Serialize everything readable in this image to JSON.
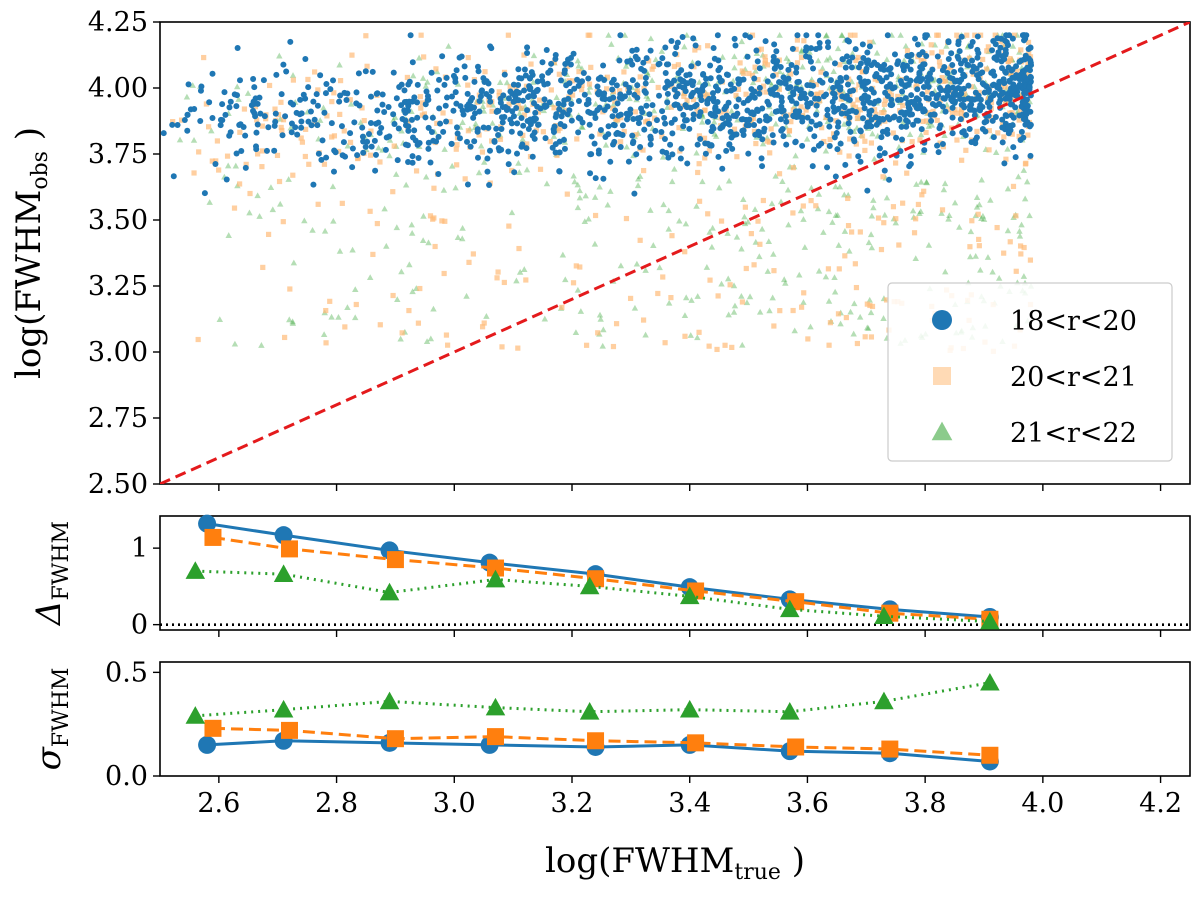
{
  "chart_data": [
    {
      "type": "scatter",
      "panel": "main",
      "ylabel_main": "log(FWHM",
      "ylabel_sub": "obs",
      "ylabel_close": " )",
      "xlim": [
        2.5,
        4.25
      ],
      "ylim": [
        2.5,
        4.25
      ],
      "yticks": [
        "2.50",
        "2.75",
        "3.00",
        "3.25",
        "3.50",
        "3.75",
        "4.00",
        "4.25"
      ],
      "grid": false,
      "legend_position": "lower-right",
      "reference_line": {
        "type": "y = x",
        "style": "dashed",
        "color": "#e41a1c"
      },
      "series": [
        {
          "name": "18<r<20",
          "marker": "circle",
          "color": "#1f77b4",
          "alpha": 1.0,
          "x_range": [
            2.5,
            4.0
          ],
          "y_range": [
            3.6,
            4.2
          ]
        },
        {
          "name": "20<r<21",
          "marker": "square",
          "color": "#ffbb78",
          "alpha": 0.7,
          "x_range": [
            2.5,
            4.0
          ],
          "y_range": [
            3.0,
            4.2
          ]
        },
        {
          "name": "21<r<22",
          "marker": "triangle",
          "color": "#2ca02c",
          "alpha": 0.35,
          "x_range": [
            2.5,
            4.0
          ],
          "y_range": [
            3.0,
            4.2
          ]
        }
      ]
    },
    {
      "type": "line",
      "panel": "delta",
      "ylabel_main": "Δ",
      "ylabel_sub": "FWHM",
      "ylim": [
        -0.07,
        1.42
      ],
      "yticks": [
        0,
        1
      ],
      "reference_line": {
        "y": 0,
        "style": "dotted",
        "color": "#000000"
      },
      "series": [
        {
          "name": "18<r<20",
          "color": "#1f77b4",
          "marker": "circle",
          "linestyle": "solid",
          "x": [
            2.58,
            2.71,
            2.89,
            3.06,
            3.24,
            3.4,
            3.57,
            3.74,
            3.91
          ],
          "y": [
            1.32,
            1.17,
            0.97,
            0.81,
            0.66,
            0.49,
            0.33,
            0.2,
            0.1
          ]
        },
        {
          "name": "20<r<21",
          "color": "#ff7f0e",
          "marker": "square",
          "linestyle": "dashed",
          "x": [
            2.59,
            2.72,
            2.9,
            3.07,
            3.24,
            3.41,
            3.58,
            3.74,
            3.91
          ],
          "y": [
            1.14,
            0.99,
            0.85,
            0.74,
            0.6,
            0.44,
            0.3,
            0.15,
            0.07
          ]
        },
        {
          "name": "21<r<22",
          "color": "#2ca02c",
          "marker": "triangle",
          "linestyle": "dotted",
          "x": [
            2.56,
            2.71,
            2.89,
            3.07,
            3.23,
            3.4,
            3.57,
            3.73,
            3.91
          ],
          "y": [
            0.7,
            0.66,
            0.42,
            0.59,
            0.5,
            0.37,
            0.2,
            0.11,
            0.04
          ]
        }
      ]
    },
    {
      "type": "line",
      "panel": "sigma",
      "ylabel_main": "σ",
      "ylabel_sub": "FWHM",
      "xlabel_main": "log(FWHM",
      "xlabel_sub": "true",
      "xlabel_close": " )",
      "xlim": [
        2.5,
        4.25
      ],
      "xticks": [
        "2.6",
        "2.8",
        "3.0",
        "3.2",
        "3.4",
        "3.6",
        "3.8",
        "4.0",
        "4.2"
      ],
      "ylim": [
        0.0,
        0.55
      ],
      "yticks": [
        "0.0",
        "0.5"
      ],
      "series": [
        {
          "name": "18<r<20",
          "color": "#1f77b4",
          "marker": "circle",
          "linestyle": "solid",
          "x": [
            2.58,
            2.71,
            2.89,
            3.06,
            3.24,
            3.4,
            3.57,
            3.74,
            3.91
          ],
          "y": [
            0.15,
            0.17,
            0.16,
            0.15,
            0.14,
            0.15,
            0.12,
            0.11,
            0.07
          ]
        },
        {
          "name": "20<r<21",
          "color": "#ff7f0e",
          "marker": "square",
          "linestyle": "dashed",
          "x": [
            2.59,
            2.72,
            2.9,
            3.07,
            3.24,
            3.41,
            3.58,
            3.74,
            3.91
          ],
          "y": [
            0.23,
            0.22,
            0.18,
            0.19,
            0.17,
            0.16,
            0.14,
            0.13,
            0.1
          ]
        },
        {
          "name": "21<r<22",
          "color": "#2ca02c",
          "marker": "triangle",
          "linestyle": "dotted",
          "x": [
            2.56,
            2.71,
            2.89,
            3.07,
            3.23,
            3.4,
            3.57,
            3.73,
            3.91
          ],
          "y": [
            0.29,
            0.32,
            0.36,
            0.33,
            0.31,
            0.32,
            0.31,
            0.36,
            0.45
          ]
        }
      ]
    }
  ]
}
